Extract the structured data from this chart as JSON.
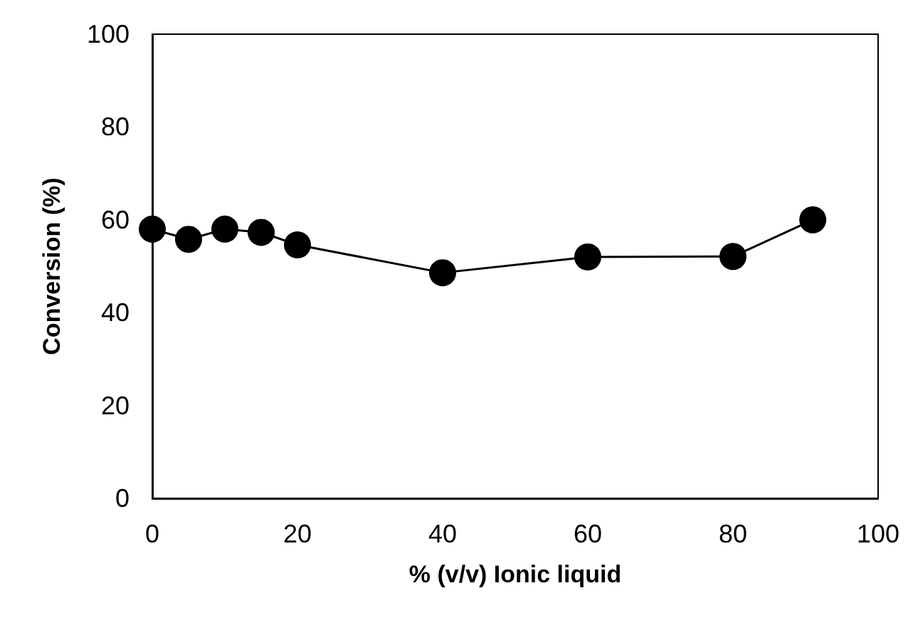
{
  "chart_data": {
    "type": "line",
    "xlabel": "% (v/v) Ionic liquid",
    "ylabel": "Conversion (%)",
    "x": [
      0,
      5,
      10,
      15,
      20,
      40,
      60,
      80,
      91
    ],
    "series": [
      {
        "color": "#000000",
        "values": [
          58,
          55.8,
          58,
          57.3,
          54.6,
          48.6,
          52,
          52.1,
          60
        ]
      }
    ],
    "xlim": [
      0,
      100
    ],
    "xticks": [
      0,
      20,
      40,
      60,
      80,
      100
    ],
    "ylim": [
      0,
      100
    ],
    "yticks": [
      0,
      20,
      40,
      60,
      80,
      100
    ],
    "grid": false,
    "marker": "circle",
    "line_style": "solid"
  }
}
